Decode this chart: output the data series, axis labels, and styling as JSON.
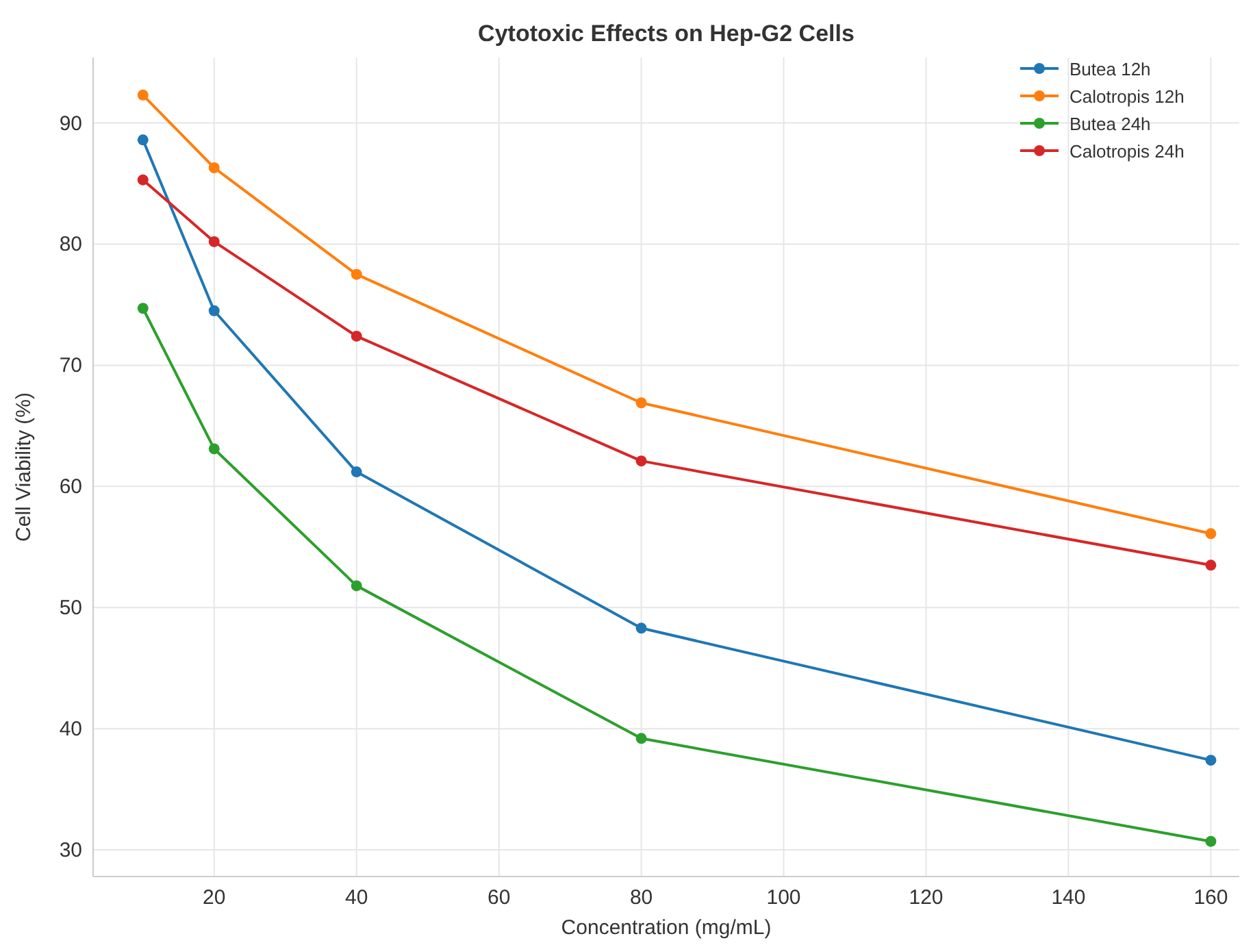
{
  "chart_data": {
    "type": "line",
    "title": "Cytotoxic Effects on Hep-G2 Cells",
    "xlabel": "Concentration (mg/mL)",
    "ylabel": "Cell Viability (%)",
    "x": [
      10,
      20,
      40,
      80,
      160
    ],
    "series": [
      {
        "name": "Butea 12h",
        "color": "#1f77b4",
        "values": [
          88.6,
          74.5,
          61.2,
          48.3,
          37.4
        ]
      },
      {
        "name": "Calotropis 12h",
        "color": "#ff7f0e",
        "values": [
          92.3,
          86.3,
          77.5,
          66.9,
          56.1
        ]
      },
      {
        "name": "Butea 24h",
        "color": "#2ca02c",
        "values": [
          74.7,
          63.1,
          51.8,
          39.2,
          30.7
        ]
      },
      {
        "name": "Calotropis 24h",
        "color": "#d62728",
        "values": [
          85.3,
          80.2,
          72.4,
          62.1,
          53.5
        ]
      }
    ],
    "xlim": [
      3,
      164
    ],
    "ylim": [
      27.8,
      95.4
    ],
    "xticks": [
      20,
      40,
      60,
      80,
      100,
      120,
      140,
      160
    ],
    "yticks": [
      30,
      40,
      50,
      60,
      70,
      80,
      90
    ],
    "grid": true,
    "legend": "top right",
    "marker": "circle",
    "line_style": "solid"
  }
}
